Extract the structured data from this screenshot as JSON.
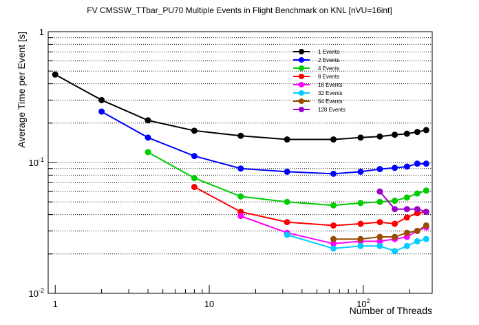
{
  "colors": {
    "black": "#000000",
    "blue": "#0000ff",
    "green": "#00cc00",
    "red": "#ff0000",
    "magenta": "#ff00ff",
    "cyan": "#00ccff",
    "brown": "#994c00",
    "purple": "#9900cc"
  },
  "chart_data": {
    "type": "line",
    "title": "FV CMSSW_TTbar_PU70 Multiple Events in Flight Benchmark on KNL [nVU=16int]",
    "xlabel": "Number of Threads",
    "ylabel": "Average Time per Event [s]",
    "x_scale": "log",
    "y_scale": "log",
    "xlim": [
      0.9,
      280
    ],
    "ylim": [
      0.01,
      1
    ],
    "x_ticks": [
      {
        "value": 1,
        "label": "1"
      },
      {
        "value": 10,
        "label": "10"
      },
      {
        "value": 100,
        "label": "10",
        "sup": "2"
      }
    ],
    "y_ticks": [
      {
        "value": 0.01,
        "label": "10",
        "sup": "-2"
      },
      {
        "value": 0.1,
        "label": "10",
        "sup": "-1"
      },
      {
        "value": 1,
        "label": "1"
      }
    ],
    "grid": "horizontal dotted",
    "legend_position": "top-right",
    "series": [
      {
        "name": "1 Events",
        "color": "#000000",
        "x": [
          1,
          2,
          4,
          8,
          16,
          32,
          64,
          96,
          128,
          160,
          192,
          224,
          256
        ],
        "y": [
          0.47,
          0.3,
          0.21,
          0.175,
          0.16,
          0.15,
          0.15,
          0.155,
          0.158,
          0.163,
          0.166,
          0.171,
          0.177
        ]
      },
      {
        "name": "2 Events",
        "color": "#0000ff",
        "x": [
          2,
          4,
          8,
          16,
          32,
          64,
          96,
          128,
          160,
          192,
          224,
          256
        ],
        "y": [
          0.245,
          0.155,
          0.112,
          0.09,
          0.085,
          0.082,
          0.085,
          0.089,
          0.091,
          0.093,
          0.098,
          0.098
        ]
      },
      {
        "name": "4 Events",
        "color": "#00cc00",
        "x": [
          4,
          8,
          16,
          32,
          64,
          96,
          128,
          160,
          192,
          224,
          256
        ],
        "y": [
          0.12,
          0.076,
          0.055,
          0.05,
          0.047,
          0.049,
          0.05,
          0.051,
          0.054,
          0.058,
          0.061
        ]
      },
      {
        "name": "8 Events",
        "color": "#ff0000",
        "x": [
          8,
          16,
          32,
          64,
          96,
          128,
          160,
          192,
          224,
          256
        ],
        "y": [
          0.065,
          0.042,
          0.035,
          0.033,
          0.034,
          0.035,
          0.034,
          0.038,
          0.041,
          0.042
        ]
      },
      {
        "name": "16 Events",
        "color": "#ff00ff",
        "x": [
          16,
          32,
          64,
          96,
          128,
          160,
          192,
          224,
          256
        ],
        "y": [
          0.039,
          0.029,
          0.024,
          0.025,
          0.025,
          0.026,
          0.027,
          0.03,
          0.032
        ]
      },
      {
        "name": "32 Events",
        "color": "#00ccff",
        "x": [
          32,
          64,
          96,
          128,
          160,
          192,
          224,
          256
        ],
        "y": [
          0.028,
          0.022,
          0.023,
          0.023,
          0.021,
          0.023,
          0.025,
          0.026
        ]
      },
      {
        "name": "64 Events",
        "color": "#994c00",
        "x": [
          64,
          96,
          128,
          160,
          192,
          224,
          256
        ],
        "y": [
          0.026,
          0.026,
          0.027,
          0.027,
          0.029,
          0.03,
          0.033
        ]
      },
      {
        "name": "128 Events",
        "color": "#9900cc",
        "x": [
          128,
          160,
          192,
          224,
          256
        ],
        "y": [
          0.06,
          0.044,
          0.044,
          0.044,
          0.042
        ]
      }
    ]
  }
}
